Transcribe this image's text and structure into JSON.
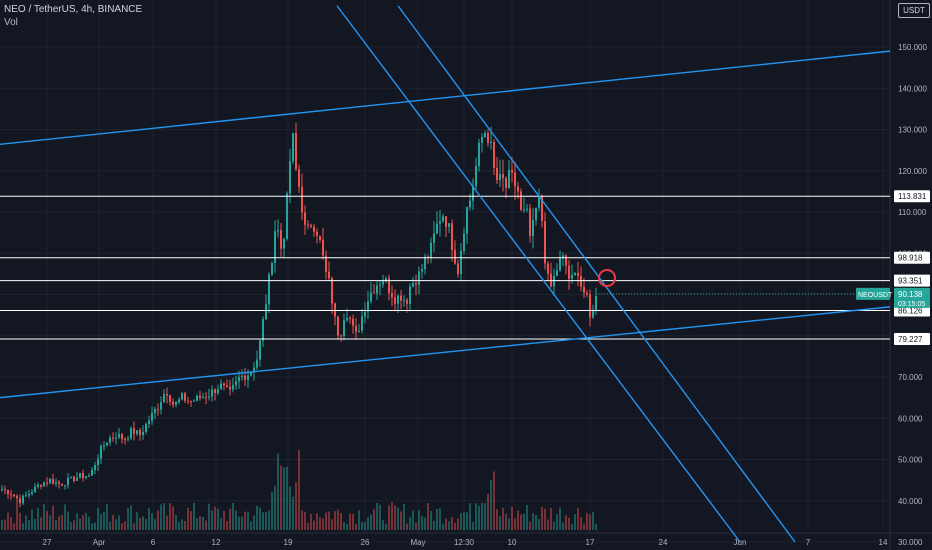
{
  "header": {
    "title": "NEO / TetherUS, 4h, BINANCE",
    "volume_label": "Vol",
    "currency": "USDT"
  },
  "colors": {
    "background": "#131722",
    "up": "#26a69a",
    "down": "#ef5350",
    "trendline": "#2196f3",
    "level": "#ffffff",
    "annotation": "#f23645",
    "grid": "#1e222d"
  },
  "chart_data": {
    "type": "candlestick",
    "symbol": "NEOUSDT",
    "ylim": [
      30,
      160
    ],
    "y_ticks": [
      "150.000",
      "140.000",
      "130.000",
      "120.000",
      "110.000",
      "100.000",
      "90.000",
      "80.000",
      "70.000",
      "60.000",
      "50.000",
      "40.000",
      "30.000"
    ],
    "x_ticks": [
      "27",
      "Apr",
      "6",
      "12",
      "19",
      "26",
      "May",
      "12:30",
      "10",
      "17",
      "24",
      "Jun",
      "7",
      "14"
    ],
    "close_points": [
      [
        0,
        43
      ],
      [
        10,
        42
      ],
      [
        20,
        40
      ],
      [
        30,
        42
      ],
      [
        40,
        44
      ],
      [
        50,
        45
      ],
      [
        60,
        44
      ],
      [
        70,
        45
      ],
      [
        80,
        46
      ],
      [
        90,
        46
      ],
      [
        100,
        52
      ],
      [
        108,
        55
      ],
      [
        116,
        56
      ],
      [
        124,
        55
      ],
      [
        132,
        57
      ],
      [
        140,
        56
      ],
      [
        150,
        60
      ],
      [
        158,
        63
      ],
      [
        166,
        67
      ],
      [
        174,
        63
      ],
      [
        182,
        65
      ],
      [
        190,
        64
      ],
      [
        200,
        65
      ],
      [
        210,
        66
      ],
      [
        220,
        68
      ],
      [
        230,
        66
      ],
      [
        240,
        70
      ],
      [
        250,
        71
      ],
      [
        258,
        75
      ],
      [
        264,
        85
      ],
      [
        270,
        95
      ],
      [
        276,
        108
      ],
      [
        282,
        100
      ],
      [
        288,
        115
      ],
      [
        292,
        130
      ],
      [
        296,
        120
      ],
      [
        300,
        115
      ],
      [
        306,
        104
      ],
      [
        312,
        108
      ],
      [
        318,
        105
      ],
      [
        322,
        100
      ],
      [
        326,
        95
      ],
      [
        330,
        92
      ],
      [
        336,
        82
      ],
      [
        340,
        80
      ],
      [
        344,
        85
      ],
      [
        348,
        86
      ],
      [
        352,
        82
      ],
      [
        356,
        80
      ],
      [
        360,
        83
      ],
      [
        366,
        88
      ],
      [
        372,
        91
      ],
      [
        378,
        93
      ],
      [
        384,
        94
      ],
      [
        390,
        91
      ],
      [
        396,
        89
      ],
      [
        402,
        90
      ],
      [
        406,
        88
      ],
      [
        410,
        92
      ],
      [
        416,
        94
      ],
      [
        420,
        95
      ],
      [
        426,
        99
      ],
      [
        430,
        100
      ],
      [
        436,
        106
      ],
      [
        442,
        110
      ],
      [
        448,
        107
      ],
      [
        454,
        100
      ],
      [
        458,
        96
      ],
      [
        462,
        103
      ],
      [
        466,
        110
      ],
      [
        470,
        113
      ],
      [
        474,
        118
      ],
      [
        478,
        124
      ],
      [
        482,
        128
      ],
      [
        486,
        130
      ],
      [
        490,
        127
      ],
      [
        494,
        120
      ],
      [
        498,
        117
      ],
      [
        502,
        118
      ],
      [
        506,
        116
      ],
      [
        510,
        119
      ],
      [
        514,
        117
      ],
      [
        518,
        115
      ],
      [
        522,
        108
      ],
      [
        526,
        111
      ],
      [
        530,
        104
      ],
      [
        534,
        107
      ],
      [
        538,
        114
      ],
      [
        542,
        108
      ],
      [
        546,
        96
      ],
      [
        550,
        91
      ],
      [
        554,
        94
      ],
      [
        558,
        97
      ],
      [
        562,
        99
      ],
      [
        566,
        97
      ],
      [
        570,
        93
      ],
      [
        574,
        94
      ],
      [
        578,
        96
      ],
      [
        582,
        91
      ],
      [
        586,
        90
      ],
      [
        590,
        84
      ],
      [
        594,
        88
      ],
      [
        598,
        90.1
      ]
    ],
    "series": [
      {
        "name": "NEOUSDT",
        "last_value": "90.138",
        "countdown": "03:15:05"
      }
    ],
    "horizontal_levels": [
      {
        "value": 113.831,
        "label": "113.831"
      },
      {
        "value": 98.918,
        "label": "98.918"
      },
      {
        "value": 93.351,
        "label": "93.351"
      },
      {
        "value": 86.126,
        "label": "86.126"
      },
      {
        "value": 79.227,
        "label": "79.227"
      }
    ],
    "trendlines": [
      {
        "name": "upper-channel",
        "from": [
          0,
          126.4
        ],
        "to": [
          890,
          149.0
        ]
      },
      {
        "name": "lower-channel",
        "from": [
          0,
          65.0
        ],
        "to": [
          890,
          87.0
        ]
      },
      {
        "name": "descending-a",
        "from": [
          337,
          160.0
        ],
        "to": [
          740,
          30.0
        ]
      },
      {
        "name": "descending-b",
        "from": [
          398,
          160.0
        ],
        "to": [
          795,
          30.0
        ]
      }
    ],
    "annotation_circle": {
      "x": 607,
      "value": 94.0
    }
  }
}
